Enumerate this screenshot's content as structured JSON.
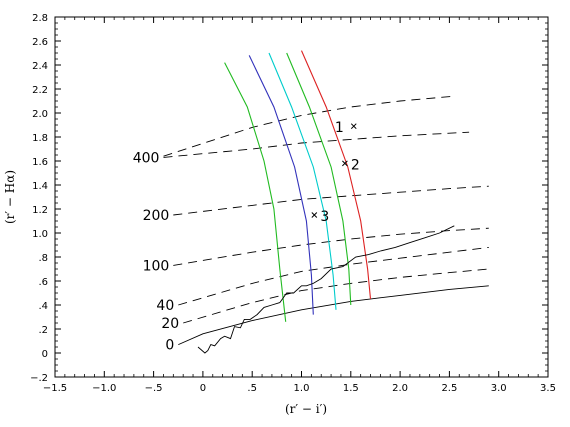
{
  "chart_data": {
    "type": "line",
    "xlabel": "(r′ − i′)",
    "ylabel": "(r′ − Hα)",
    "xlim": [
      -1.5,
      3.5
    ],
    "ylim": [
      -0.2,
      2.8
    ],
    "x_ticks": [
      "−1.5",
      "−1.0",
      "−.5",
      "0",
      ".5",
      "1.0",
      "1.5",
      "2.0",
      "2.5",
      "3.0",
      "3.5"
    ],
    "y_ticks": [
      "−.2",
      "0",
      ".2",
      ".4",
      ".6",
      ".8",
      "1.0",
      "1.2",
      "1.4",
      "1.6",
      "1.8",
      "2.0",
      "2.2",
      "2.4",
      "2.6",
      "2.8"
    ],
    "ew_curves": [
      {
        "label": "0",
        "x": [
          -0.25,
          0.0,
          0.5,
          1.0,
          1.5,
          2.0,
          2.5,
          2.9
        ],
        "y": [
          0.07,
          0.16,
          0.27,
          0.36,
          0.43,
          0.48,
          0.53,
          0.56
        ]
      },
      {
        "label": "20",
        "x": [
          -0.2,
          0.5,
          1.0,
          1.5,
          2.0,
          2.5,
          2.9
        ],
        "y": [
          0.25,
          0.42,
          0.52,
          0.58,
          0.63,
          0.67,
          0.7
        ]
      },
      {
        "label": "40",
        "x": [
          -0.25,
          0.5,
          1.0,
          1.5,
          2.0,
          2.5,
          2.9
        ],
        "y": [
          0.4,
          0.58,
          0.68,
          0.74,
          0.79,
          0.84,
          0.88
        ]
      },
      {
        "label": "100",
        "x": [
          -0.3,
          0.5,
          1.0,
          1.5,
          2.0,
          2.5,
          2.9
        ],
        "y": [
          0.73,
          0.84,
          0.9,
          0.95,
          0.99,
          1.02,
          1.04
        ]
      },
      {
        "label": "200",
        "x": [
          -0.3,
          0.5,
          1.0,
          1.5,
          2.0,
          2.5,
          2.9
        ],
        "y": [
          1.15,
          1.23,
          1.28,
          1.31,
          1.34,
          1.37,
          1.39
        ]
      },
      {
        "label": "400",
        "x": [
          -0.4,
          0.5,
          1.0,
          1.5,
          2.0,
          2.7
        ],
        "y": [
          1.63,
          1.7,
          1.75,
          1.78,
          1.81,
          1.84
        ]
      },
      {
        "label": "",
        "x": [
          -0.4,
          0.5,
          1.0,
          1.5,
          2.0,
          2.55
        ],
        "y": [
          1.64,
          1.88,
          1.98,
          2.05,
          2.1,
          2.14
        ]
      }
    ],
    "colored_curves": [
      {
        "color": "#22bb22",
        "x": [
          0.22,
          0.45,
          0.62,
          0.72,
          0.78,
          0.84
        ],
        "y": [
          2.42,
          2.05,
          1.6,
          1.2,
          0.7,
          0.26
        ]
      },
      {
        "color": "#3333bb",
        "x": [
          0.47,
          0.72,
          0.93,
          1.05,
          1.1,
          1.12
        ],
        "y": [
          2.48,
          2.05,
          1.55,
          1.1,
          0.65,
          0.32
        ]
      },
      {
        "color": "#00cccc",
        "x": [
          0.67,
          0.9,
          1.12,
          1.25,
          1.32,
          1.35
        ],
        "y": [
          2.5,
          2.05,
          1.55,
          1.1,
          0.65,
          0.36
        ]
      },
      {
        "color": "#22bb22",
        "x": [
          0.85,
          1.08,
          1.3,
          1.42,
          1.48,
          1.5
        ],
        "y": [
          2.5,
          2.05,
          1.55,
          1.1,
          0.7,
          0.4
        ]
      },
      {
        "color": "#dd2222",
        "x": [
          1.0,
          1.25,
          1.47,
          1.6,
          1.67,
          1.7
        ],
        "y": [
          2.52,
          2.05,
          1.55,
          1.1,
          0.7,
          0.45
        ]
      }
    ],
    "data_track": {
      "x": [
        -0.05,
        0.02,
        0.05,
        0.08,
        0.12,
        0.18,
        0.22,
        0.28,
        0.32,
        0.38,
        0.42,
        0.48,
        0.55,
        0.62,
        0.7,
        0.78,
        0.85,
        0.92,
        1.0,
        1.05,
        1.12,
        1.2,
        1.3,
        1.42,
        1.55,
        1.68,
        1.8,
        1.95,
        2.1,
        2.25,
        2.4,
        2.55
      ],
      "y": [
        0.05,
        0.0,
        0.02,
        0.07,
        0.06,
        0.12,
        0.14,
        0.12,
        0.22,
        0.21,
        0.28,
        0.28,
        0.32,
        0.38,
        0.4,
        0.42,
        0.5,
        0.5,
        0.56,
        0.56,
        0.58,
        0.62,
        0.7,
        0.72,
        0.8,
        0.82,
        0.85,
        0.88,
        0.92,
        0.96,
        1.0,
        1.06
      ]
    },
    "markers": [
      {
        "label": "1",
        "x": 1.53,
        "y": 1.89
      },
      {
        "label": "2",
        "x": 1.44,
        "y": 1.58
      },
      {
        "label": "3",
        "x": 1.13,
        "y": 1.15
      }
    ]
  }
}
